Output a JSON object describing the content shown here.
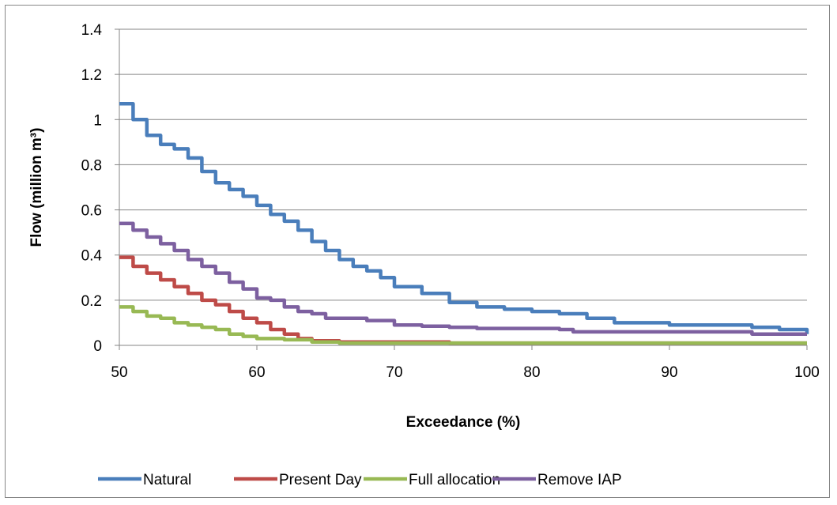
{
  "chart_data": {
    "type": "line",
    "xlabel": "Exceedance (%)",
    "ylabel": "Flow (million m³)",
    "xlim": [
      50,
      100
    ],
    "ylim": [
      0,
      1.4
    ],
    "xticks": [
      50,
      60,
      70,
      80,
      90,
      100
    ],
    "yticks": [
      0,
      0.2,
      0.4,
      0.6,
      0.8,
      1,
      1.2,
      1.4
    ],
    "ytick_labels": [
      "0",
      "0.2",
      "0.4",
      "0.6",
      "0.8",
      "1",
      "1.2",
      "1.4"
    ],
    "grid": "horizontal",
    "legend_position": "bottom",
    "series": [
      {
        "name": "Natural",
        "color": "#4a7ebb",
        "x": [
          50,
          51,
          52,
          53,
          54,
          55,
          56,
          57,
          58,
          59,
          60,
          61,
          62,
          63,
          64,
          65,
          66,
          67,
          68,
          69,
          70,
          72,
          74,
          76,
          78,
          80,
          82,
          84,
          86,
          88,
          90,
          92,
          94,
          96,
          98,
          100
        ],
        "y": [
          1.07,
          1.0,
          0.93,
          0.89,
          0.87,
          0.83,
          0.77,
          0.72,
          0.69,
          0.66,
          0.62,
          0.58,
          0.55,
          0.51,
          0.46,
          0.42,
          0.38,
          0.35,
          0.33,
          0.3,
          0.26,
          0.23,
          0.19,
          0.17,
          0.16,
          0.15,
          0.14,
          0.12,
          0.1,
          0.1,
          0.09,
          0.09,
          0.09,
          0.08,
          0.07,
          0.05
        ]
      },
      {
        "name": "Present Day",
        "color": "#be4b48",
        "x": [
          50,
          51,
          52,
          53,
          54,
          55,
          56,
          57,
          58,
          59,
          60,
          61,
          62,
          63,
          64,
          65,
          66,
          68,
          70,
          72,
          74,
          75,
          80,
          90,
          100
        ],
        "y": [
          0.39,
          0.35,
          0.32,
          0.29,
          0.26,
          0.23,
          0.2,
          0.18,
          0.15,
          0.12,
          0.1,
          0.07,
          0.05,
          0.03,
          0.02,
          0.02,
          0.015,
          0.015,
          0.015,
          0.015,
          0.01,
          0.01,
          0.01,
          0.01,
          0.01
        ]
      },
      {
        "name": "Full allocation",
        "color": "#98b954",
        "x": [
          50,
          51,
          52,
          53,
          54,
          55,
          56,
          57,
          58,
          59,
          60,
          62,
          64,
          66,
          70,
          80,
          90,
          100
        ],
        "y": [
          0.17,
          0.15,
          0.13,
          0.12,
          0.1,
          0.09,
          0.08,
          0.07,
          0.05,
          0.04,
          0.03,
          0.025,
          0.015,
          0.01,
          0.01,
          0.01,
          0.01,
          0.01
        ]
      },
      {
        "name": "Remove IAP",
        "color": "#7d60a0",
        "x": [
          50,
          51,
          52,
          53,
          54,
          55,
          56,
          57,
          58,
          59,
          60,
          61,
          62,
          63,
          64,
          65,
          66,
          68,
          70,
          72,
          74,
          76,
          78,
          80,
          82,
          83,
          86,
          90,
          94,
          96,
          100
        ],
        "y": [
          0.54,
          0.51,
          0.48,
          0.45,
          0.42,
          0.38,
          0.35,
          0.32,
          0.28,
          0.25,
          0.21,
          0.2,
          0.17,
          0.15,
          0.14,
          0.12,
          0.12,
          0.11,
          0.09,
          0.085,
          0.08,
          0.075,
          0.075,
          0.075,
          0.07,
          0.06,
          0.06,
          0.06,
          0.06,
          0.05,
          0.05
        ]
      }
    ]
  }
}
